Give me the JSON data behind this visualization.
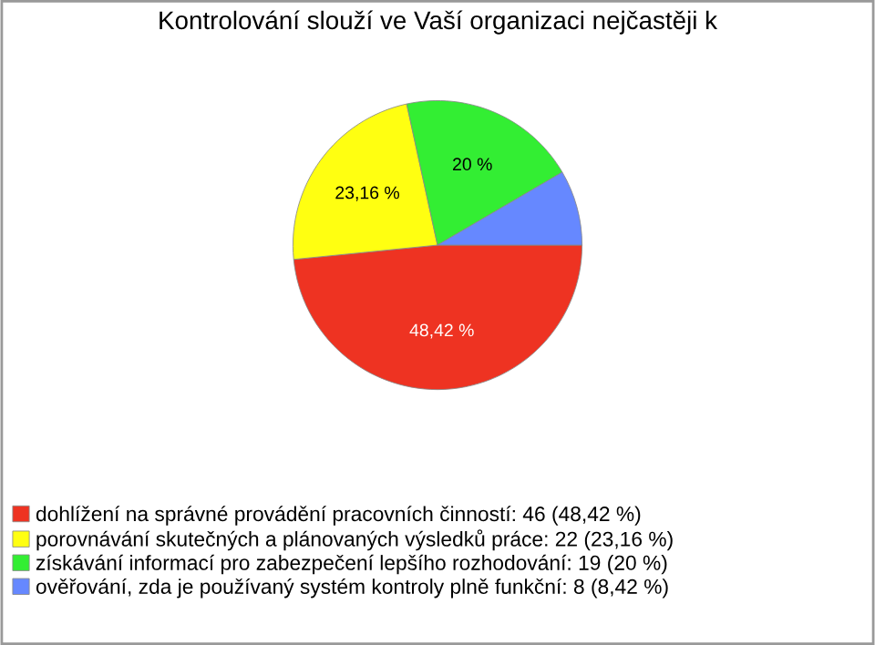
{
  "chart_data": {
    "type": "pie",
    "title": "Kontrolování slouží ve Vaší organizaci nejčastěji k",
    "categories": [
      "dohlížení na správné provádění pracovních činností: 46 (48,42 %)",
      "porovnávání skutečných a plánovaných výsledků práce: 22 (23,16 %)",
      "získávání informací pro zabezpečení lepšího rozhodování: 19 (20 %)",
      "ověřování, zda je používaný systém kontroly plně funkční: 8 (8,42 %)"
    ],
    "values": [
      48.42,
      23.16,
      20,
      8.42
    ],
    "colors": [
      "#ee3322",
      "#ffff11",
      "#33ee33",
      "#6688ff"
    ],
    "value_labels": [
      "48,42 %",
      "23,16 %",
      "20 %",
      null
    ],
    "legend": "bottom"
  }
}
